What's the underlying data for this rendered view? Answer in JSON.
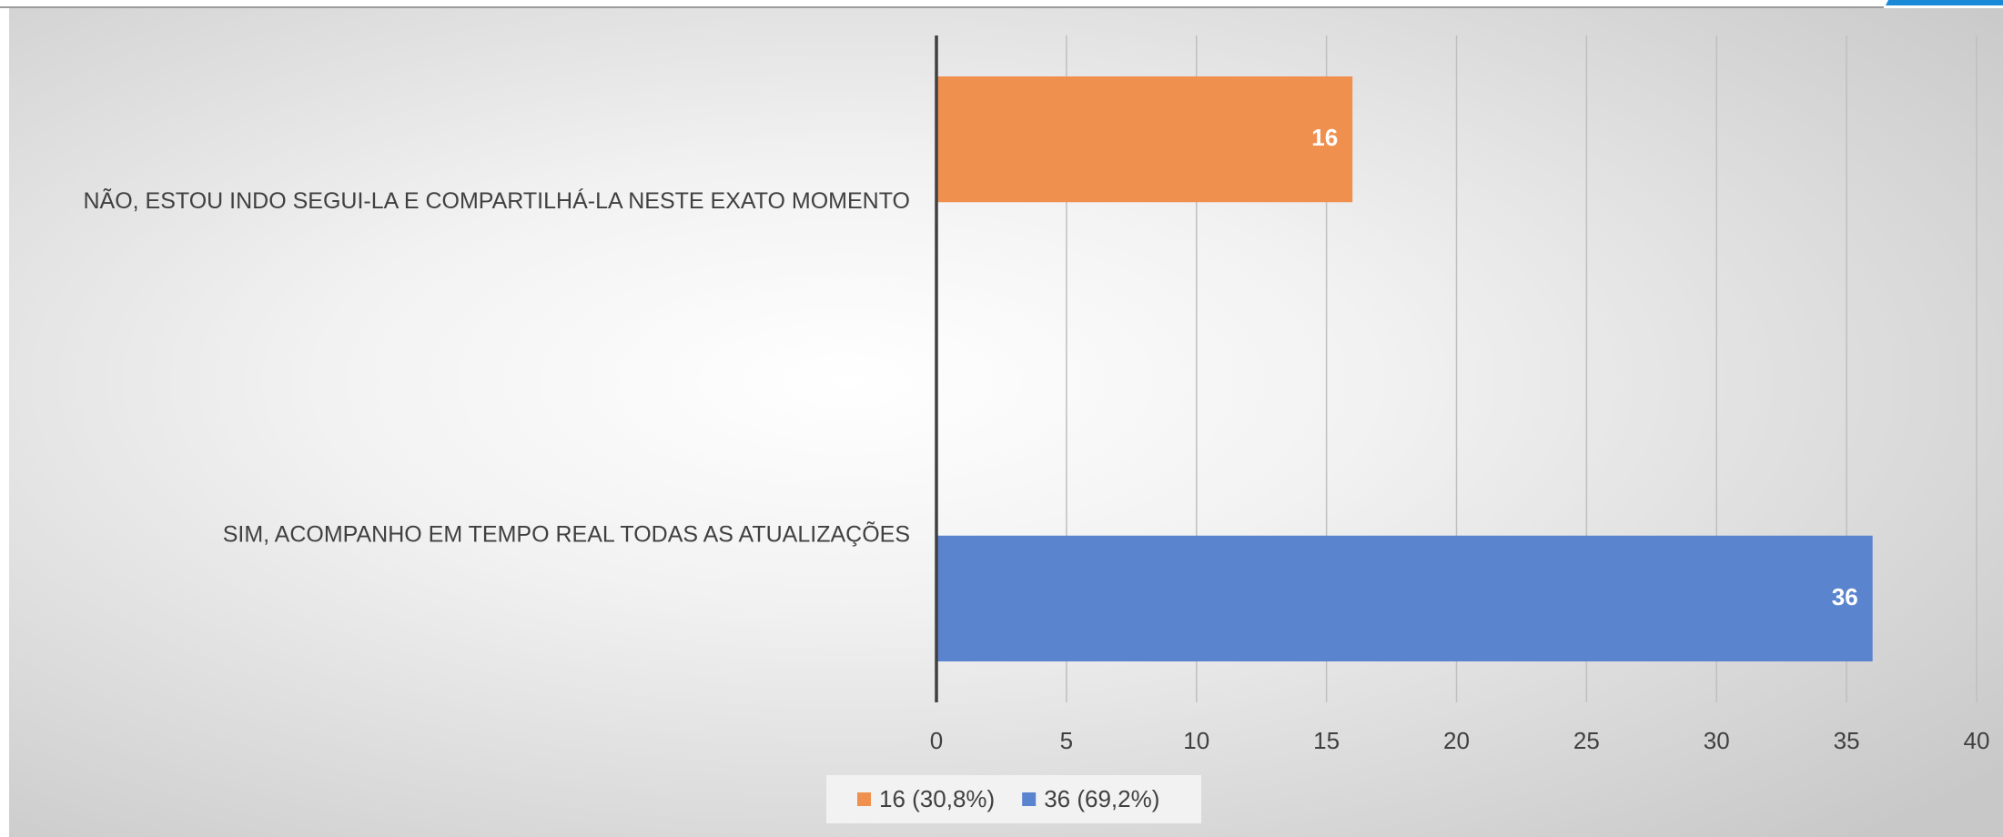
{
  "chart_data": {
    "type": "bar",
    "orientation": "horizontal",
    "categories": [
      "NÃO, ESTOU INDO SEGUI-LA E COMPARTILHÁ-LA NESTE EXATO MOMENTO",
      "SIM, ACOMPANHO EM TEMPO REAL TODAS AS ATUALIZAÇÕES"
    ],
    "series": [
      {
        "name": "16 (30,8%)",
        "color": "#f0904f",
        "values": [
          16,
          null
        ]
      },
      {
        "name": "36 (69,2%)",
        "color": "#5b84cf",
        "values": [
          null,
          36
        ]
      }
    ],
    "xlim": [
      0,
      40
    ],
    "xticks": [
      0,
      5,
      10,
      15,
      20,
      25,
      30,
      35,
      40
    ],
    "grid": true,
    "legend": "bottom",
    "data_labels": true
  }
}
